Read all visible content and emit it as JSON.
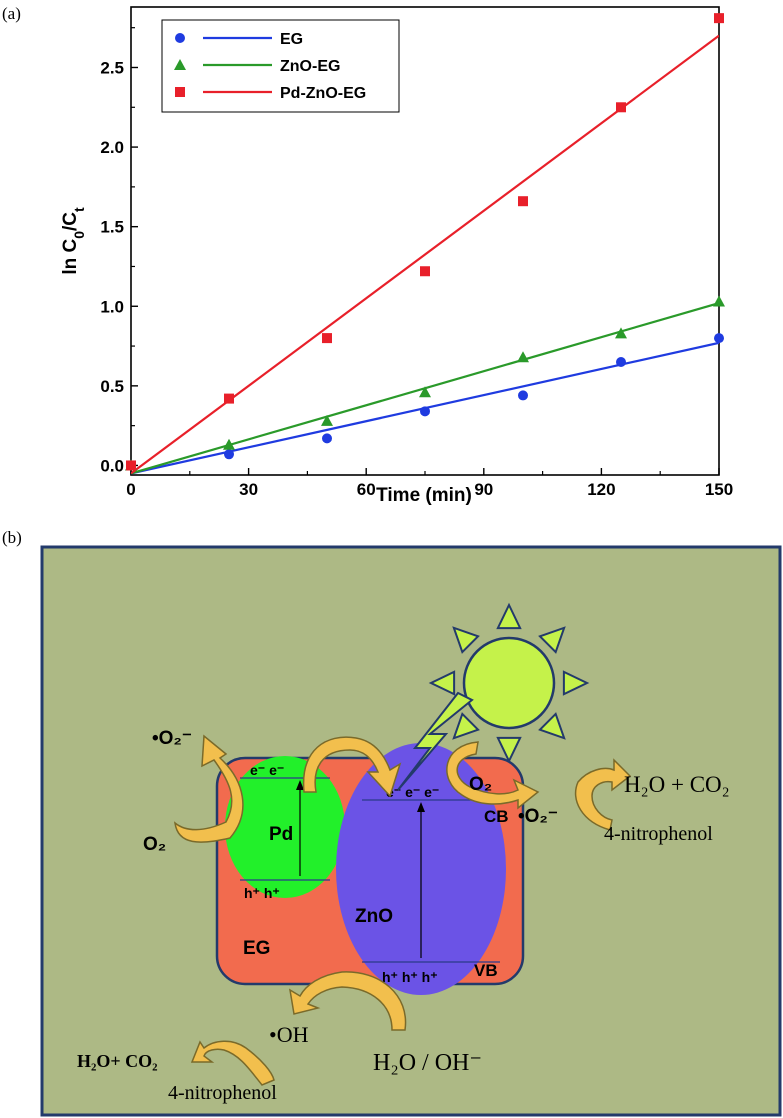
{
  "panel_a": "(a)",
  "panel_b": "(b)",
  "chart_data": {
    "type": "scatter",
    "xlabel": "Time (min)",
    "ylabel_main": "ln C",
    "ylabel_sub0": "0",
    "ylabel_mid": "/C",
    "ylabel_sub1": "t",
    "xlim": [
      0,
      150
    ],
    "ylim": [
      -0.06,
      2.88
    ],
    "xticks": [
      0,
      30,
      60,
      90,
      120,
      150
    ],
    "xtick_labels": [
      "0",
      "30",
      "60",
      "90",
      "120",
      "150"
    ],
    "yticks": [
      0.0,
      0.5,
      1.0,
      1.5,
      2.0,
      2.5
    ],
    "ytick_labels": [
      "0.0",
      "0.5",
      "1.0",
      "1.5",
      "2.0",
      "2.5"
    ],
    "grid": false,
    "legend_position": "top-left",
    "series": [
      {
        "name": "EG",
        "marker": "circle",
        "color": "#1f3be0",
        "x": [
          0,
          25,
          50,
          75,
          100,
          125,
          150
        ],
        "y": [
          0.0,
          0.07,
          0.17,
          0.34,
          0.44,
          0.65,
          0.8
        ],
        "fit": [
          [
            0,
            -0.05
          ],
          [
            150,
            0.77
          ]
        ]
      },
      {
        "name": "ZnO-EG",
        "marker": "triangle",
        "color": "#2a9a2a",
        "x": [
          0,
          25,
          50,
          75,
          100,
          125,
          150
        ],
        "y": [
          0.0,
          0.13,
          0.28,
          0.46,
          0.68,
          0.83,
          1.03
        ],
        "fit": [
          [
            0,
            -0.05
          ],
          [
            150,
            1.02
          ]
        ]
      },
      {
        "name": "Pd-ZnO-EG",
        "marker": "square",
        "color": "#e8202a",
        "x": [
          0,
          25,
          50,
          75,
          100,
          125,
          150
        ],
        "y": [
          0.0,
          0.42,
          0.8,
          1.22,
          1.66,
          2.25,
          2.81
        ],
        "fit": [
          [
            0,
            -0.05
          ],
          [
            150,
            2.7
          ]
        ]
      }
    ]
  },
  "scheme": {
    "colors": {
      "background": "#adb985",
      "eg": "#f26b4e",
      "pd": "#22f02a",
      "zno": "#6b53e6",
      "sun": "#c5f24a",
      "arrow": "#f2bf4d",
      "arrow_edge": "#7a6a2a",
      "border": "#233a6b"
    },
    "labels": {
      "pd": "Pd",
      "zno": "ZnO",
      "eg": "EG",
      "cb": "CB",
      "vb": "VB",
      "pd_electrons": "e⁻ e⁻",
      "pd_holes": "h⁺ h⁺",
      "zno_electrons": "e⁻ e⁻  e⁻",
      "zno_holes": "h⁺ h⁺ h⁺",
      "superoxide_left": "•O₂⁻",
      "o2_left": "O₂",
      "o2_right": "O₂",
      "superoxide_right": "•O₂⁻",
      "products_right": "H₂O + CO₂",
      "nitrophenol_right": "4-nitrophenol",
      "hydroxyl": "•OH",
      "products_left": "H₂O+ CO₂",
      "nitrophenol_left": "4-nitrophenol",
      "water": "H₂O / OH⁻"
    }
  }
}
